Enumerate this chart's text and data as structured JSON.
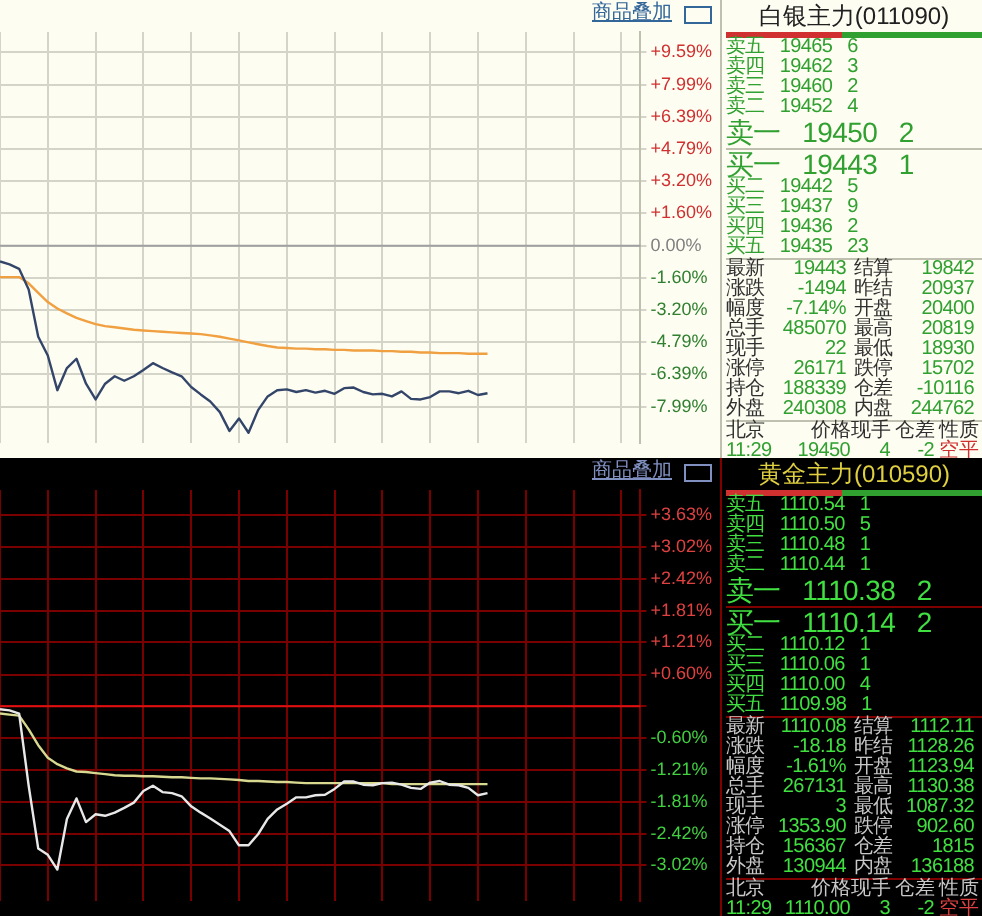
{
  "chart_data": [
    {
      "type": "line",
      "annotations": [
        "商品叠加"
      ],
      "marker": "none",
      "grid": true,
      "tick_labels": "y",
      "categories": [
        null,
        null,
        null,
        null,
        null,
        null,
        null,
        null,
        null,
        null,
        null,
        null,
        null,
        null,
        null,
        null,
        null,
        null,
        null,
        null,
        null,
        null,
        null,
        null,
        null,
        null,
        null,
        null,
        null,
        null,
        null,
        null,
        null,
        null,
        null,
        null,
        null,
        null,
        null,
        null,
        null,
        null,
        null,
        null,
        null,
        null,
        null,
        null,
        null,
        null,
        null,
        null,
        null,
        null,
        null,
        null,
        null,
        null,
        null,
        null,
        null,
        null,
        null,
        null,
        null,
        null,
        null,
        null
      ],
      "series": [
        {
          "color": "#34456a",
          "values": [
            -0.78,
            -0.93,
            -1.15,
            -2.18,
            -4.52,
            -5.45,
            -7.17,
            -6.07,
            -5.61,
            -6.85,
            -7.63,
            -6.85,
            -6.48,
            -6.7,
            -6.48,
            -6.17,
            -5.83,
            -6.07,
            -6.29,
            -6.48,
            -7.01,
            -7.38,
            -7.73,
            -8.26,
            -9.19,
            -8.57,
            -9.28,
            -8.16,
            -7.48,
            -7.17,
            -7.13,
            -7.26,
            -7.17,
            -7.29,
            -7.2,
            -7.35,
            -7.07,
            -7.04,
            -7.26,
            -7.38,
            -7.35,
            -7.48,
            -7.23,
            -7.6,
            -7.63,
            -7.51,
            -7.23,
            -7.23,
            -7.32,
            -7.2,
            -7.41,
            -7.32,
            null,
            null,
            null,
            null,
            null,
            null,
            null,
            null,
            null,
            null,
            null,
            null,
            null,
            null,
            null,
            null
          ]
        },
        {
          "color": "#f0a040",
          "values": [
            -1.56,
            -1.56,
            -1.56,
            -1.87,
            -2.34,
            -2.8,
            -3.12,
            -3.36,
            -3.58,
            -3.74,
            -3.89,
            -3.99,
            -4.05,
            -4.11,
            -4.17,
            -4.21,
            -4.24,
            -4.27,
            -4.3,
            -4.33,
            -4.36,
            -4.39,
            -4.45,
            -4.52,
            -4.61,
            -4.7,
            -4.8,
            -4.89,
            -4.98,
            -5.05,
            -5.08,
            -5.11,
            -5.11,
            -5.14,
            -5.14,
            -5.17,
            -5.17,
            -5.2,
            -5.2,
            -5.2,
            -5.23,
            -5.23,
            -5.26,
            -5.26,
            -5.3,
            -5.3,
            -5.33,
            -5.33,
            -5.33,
            -5.36,
            -5.36,
            -5.36,
            null,
            null,
            null,
            null,
            null,
            null,
            null,
            null,
            null,
            null,
            null,
            null,
            null,
            null,
            null,
            null
          ]
        }
      ],
      "ylim": [
        -9.8,
        10.6
      ],
      "ref_lines": [
        {
          "axis": "y",
          "value": 0,
          "color": "#a0a0a0"
        }
      ],
      "yticks": [
        {
          "value": 9.59,
          "label": "+9.59%"
        },
        {
          "value": 7.99,
          "label": "+7.99%"
        },
        {
          "value": 6.39,
          "label": "+6.39%"
        },
        {
          "value": 4.79,
          "label": "+4.79%"
        },
        {
          "value": 3.2,
          "label": "+3.20%"
        },
        {
          "value": 1.6,
          "label": "+1.60%"
        },
        {
          "value": 0,
          "label": "0.00%"
        },
        {
          "value": -1.6,
          "label": "-1.60%"
        },
        {
          "value": -3.2,
          "label": "-3.20%"
        },
        {
          "value": -4.79,
          "label": "-4.79%"
        },
        {
          "value": -6.39,
          "label": "-6.39%"
        },
        {
          "value": -7.99,
          "label": "-7.99%"
        }
      ]
    },
    {
      "type": "other",
      "title": "白银主力(011090)",
      "annotations": [
        "卖五",
        "19465",
        "6",
        "卖四",
        "19462",
        "3",
        "卖三",
        "19460",
        "2",
        "卖二",
        "19452",
        "4",
        "卖一",
        "19450",
        "2",
        "买一",
        "19443",
        "1",
        "买二",
        "19442",
        "5",
        "买三",
        "19437",
        "9",
        "买四",
        "19436",
        "2",
        "买五",
        "19435",
        "23",
        "最新",
        "19443",
        "结算",
        "19842",
        "涨跌",
        "-1494",
        "昨结",
        "20937",
        "幅度",
        "-7.14%",
        "开盘",
        "20400",
        "总手",
        "485070",
        "最高",
        "20819",
        "现手",
        "22",
        "最低",
        "18930",
        "涨停",
        "26171",
        "跌停",
        "15702",
        "持仓",
        "188339",
        "仓差",
        "-10116",
        "外盘",
        "240308",
        "内盘",
        "244762",
        "北京",
        "价格",
        "现手",
        "仓差",
        "性质",
        "11:29",
        "19450",
        "4",
        "-2",
        "空平"
      ]
    },
    {
      "type": "line",
      "annotations": [
        "商品叠加"
      ],
      "marker": "none",
      "grid": true,
      "tick_labels": "y",
      "categories": [
        null,
        null,
        null,
        null,
        null,
        null,
        null,
        null,
        null,
        null,
        null,
        null,
        null,
        null,
        null,
        null,
        null,
        null,
        null,
        null,
        null,
        null,
        null,
        null,
        null,
        null,
        null,
        null,
        null,
        null,
        null,
        null,
        null,
        null,
        null,
        null,
        null,
        null,
        null,
        null,
        null,
        null,
        null,
        null,
        null,
        null,
        null,
        null,
        null,
        null,
        null,
        null,
        null,
        null,
        null,
        null,
        null,
        null,
        null,
        null,
        null,
        null,
        null,
        null,
        null,
        null,
        null,
        null
      ],
      "series": [
        {
          "color": "#e8e8e8",
          "values": [
            -0.06,
            -0.08,
            -0.14,
            -1.51,
            -2.7,
            -2.82,
            -3.1,
            -2.14,
            -1.75,
            -2.2,
            -2.05,
            -2.08,
            -2.02,
            -1.93,
            -1.83,
            -1.61,
            -1.51,
            -1.63,
            -1.65,
            -1.71,
            -1.9,
            -2.02,
            -2.13,
            -2.25,
            -2.37,
            -2.64,
            -2.64,
            -2.43,
            -2.14,
            -1.96,
            -1.85,
            -1.73,
            -1.73,
            -1.69,
            -1.68,
            -1.57,
            -1.43,
            -1.43,
            -1.49,
            -1.5,
            -1.46,
            -1.45,
            -1.49,
            -1.55,
            -1.57,
            -1.45,
            -1.42,
            -1.49,
            -1.5,
            -1.55,
            -1.69,
            -1.65,
            null,
            null,
            null,
            null,
            null,
            null,
            null,
            null,
            null,
            null,
            null,
            null,
            null,
            null,
            null,
            null
          ]
        },
        {
          "color": "#d8d890",
          "values": [
            -0.14,
            -0.16,
            -0.18,
            -0.44,
            -0.74,
            -0.98,
            -1.1,
            -1.18,
            -1.24,
            -1.25,
            -1.27,
            -1.29,
            -1.31,
            -1.32,
            -1.32,
            -1.33,
            -1.33,
            -1.34,
            -1.35,
            -1.35,
            -1.36,
            -1.37,
            -1.37,
            -1.38,
            -1.39,
            -1.4,
            -1.42,
            -1.42,
            -1.43,
            -1.44,
            -1.44,
            -1.45,
            -1.46,
            -1.46,
            -1.46,
            -1.46,
            -1.46,
            -1.46,
            -1.46,
            -1.46,
            -1.46,
            -1.48,
            -1.48,
            -1.48,
            -1.48,
            -1.48,
            -1.48,
            -1.48,
            -1.48,
            -1.48,
            -1.48,
            -1.48,
            null,
            null,
            null,
            null,
            null,
            null,
            null,
            null,
            null,
            null,
            null,
            null,
            null,
            null,
            null,
            null
          ]
        }
      ],
      "ylim": [
        -3.7,
        4.1
      ],
      "ref_lines": [
        {
          "axis": "y",
          "value": 0,
          "color": "#e01010"
        }
      ],
      "yticks": [
        {
          "value": 3.63,
          "label": "+3.63%"
        },
        {
          "value": 3.02,
          "label": "+3.02%"
        },
        {
          "value": 2.42,
          "label": "+2.42%"
        },
        {
          "value": 1.81,
          "label": "+1.81%"
        },
        {
          "value": 1.21,
          "label": "+1.21%"
        },
        {
          "value": 0.6,
          "label": "+0.60%"
        },
        {
          "value": 0,
          "label": null
        },
        {
          "value": -0.6,
          "label": "-0.60%"
        },
        {
          "value": -1.21,
          "label": "-1.21%"
        },
        {
          "value": -1.81,
          "label": "-1.81%"
        },
        {
          "value": -2.42,
          "label": "-2.42%"
        },
        {
          "value": -3.02,
          "label": "-3.02%"
        }
      ]
    },
    {
      "type": "other",
      "title": "黄金主力(010590)",
      "annotations": [
        "卖五",
        "1110.54",
        "1",
        "卖四",
        "1110.50",
        "5",
        "卖三",
        "1110.48",
        "1",
        "卖二",
        "1110.44",
        "1",
        "卖一",
        "1110.38",
        "2",
        "买一",
        "1110.14",
        "2",
        "买二",
        "1110.12",
        "1",
        "买三",
        "1110.06",
        "1",
        "买四",
        "1110.00",
        "4",
        "买五",
        "1109.98",
        "1",
        "最新",
        "1110.08",
        "结算",
        "1112.11",
        "涨跌",
        "-18.18",
        "昨结",
        "1128.26",
        "幅度",
        "-1.61%",
        "开盘",
        "1123.94",
        "总手",
        "267131",
        "最高",
        "1130.38",
        "现手",
        "3",
        "最低",
        "1087.32",
        "涨停",
        "1353.90",
        "跌停",
        "902.60",
        "持仓",
        "156367",
        "仓差",
        "1815",
        "外盘",
        "130944",
        "内盘",
        "136188",
        "北京",
        "价格",
        "现手",
        "仓差",
        "性质",
        "11:29",
        "1110.00",
        "3",
        "-2",
        "空平"
      ]
    }
  ]
}
